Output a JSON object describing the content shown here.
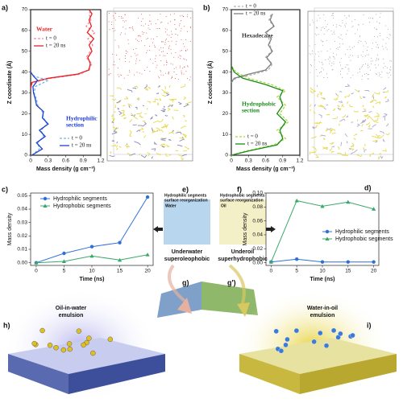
{
  "chart_data": [
    {
      "type": "profile",
      "label": "a)",
      "xlabel": "Mass density (g cm⁻³)",
      "ylabel": "Z coordinate (Å)",
      "xlim": [
        0,
        1.2
      ],
      "ylim": [
        0,
        70
      ],
      "xticks": [
        0,
        0.3,
        0.6,
        0.9,
        1.2
      ],
      "yticks": [
        0,
        10,
        20,
        30,
        40,
        50,
        60,
        70
      ],
      "groups": [
        {
          "title": [
            "Water"
          ],
          "title_color": "#e8202a",
          "series": [
            {
              "name": "t = 0",
              "color": "#f28b8b",
              "dash": true,
              "x": [
                0,
                0.03,
                0.35,
                0.85,
                0.98,
                1.05,
                0.95,
                1.02,
                1.06,
                0.98,
                1.1,
                0.95,
                1.03,
                1.0,
                1.04
              ],
              "y": [
                32,
                35,
                37,
                39,
                41,
                44,
                47,
                50,
                53,
                56,
                59,
                62,
                65,
                68,
                70
              ]
            },
            {
              "name": "t = 20 ns",
              "color": "#e8202a",
              "dash": false,
              "x": [
                0,
                0.02,
                0.3,
                0.8,
                1.0,
                1.02,
                0.98,
                1.05,
                1.0,
                1.08,
                0.97,
                1.04,
                1.0,
                1.05,
                1.0
              ],
              "y": [
                32,
                35,
                37,
                39,
                41,
                44,
                47,
                50,
                53,
                56,
                59,
                62,
                65,
                68,
                70
              ]
            }
          ]
        },
        {
          "title": [
            "Hydrophilic",
            "section"
          ],
          "title_color": "#1f3fd0",
          "series": [
            {
              "name": "t = 0",
              "color": "#6fb8e8",
              "dash": true,
              "x": [
                0.02,
                0.15,
                0.12,
                0.22,
                0.18,
                0.28,
                0.22,
                0.2,
                0.12,
                0.1,
                0.06,
                0.08,
                0.3,
                0.06,
                0
              ],
              "y": [
                0,
                3,
                6,
                9,
                12,
                15,
                18,
                21,
                24,
                27,
                30,
                33,
                36,
                38,
                40
              ]
            },
            {
              "name": "t = 20 ns",
              "color": "#1f3fd0",
              "dash": false,
              "x": [
                0.02,
                0.2,
                0.1,
                0.25,
                0.15,
                0.3,
                0.2,
                0.22,
                0.1,
                0.08,
                0.05,
                0.04,
                0.12,
                0.05,
                0
              ],
              "y": [
                0,
                3,
                6,
                9,
                12,
                15,
                18,
                21,
                24,
                27,
                30,
                33,
                36,
                38,
                40
              ]
            }
          ]
        }
      ]
    },
    {
      "type": "profile",
      "label": "b)",
      "xlabel": "Mass density (g cm⁻³)",
      "ylabel": "Z coordinate (Å)",
      "xlim": [
        0,
        1.2
      ],
      "ylim": [
        0,
        70
      ],
      "xticks": [
        0,
        0.3,
        0.6,
        0.9,
        1.2
      ],
      "yticks": [
        0,
        10,
        20,
        30,
        40,
        50,
        60,
        70
      ],
      "groups": [
        {
          "title": [
            "Hexadecane"
          ],
          "title_color": "#333333",
          "series": [
            {
              "name": "t = 0",
              "color": "#b0b0b0",
              "dash": true,
              "x": [
                0,
                0.08,
                0.4,
                0.65,
                0.72,
                0.6,
                0.7,
                0.68,
                0.66,
                0.62,
                0.74,
                0.66,
                0.7
              ],
              "y": [
                35,
                37,
                39,
                41,
                44,
                47,
                50,
                53,
                56,
                59,
                62,
                65,
                68
              ]
            },
            {
              "name": "t = 20 ns",
              "color": "#808080",
              "dash": false,
              "x": [
                0,
                0.05,
                0.3,
                0.6,
                0.7,
                0.62,
                0.72,
                0.65,
                0.7,
                0.6,
                0.75,
                0.68,
                0.72
              ],
              "y": [
                35,
                37,
                39,
                41,
                44,
                47,
                50,
                53,
                56,
                59,
                62,
                65,
                68
              ]
            }
          ]
        },
        {
          "title": [
            "Hydrophobic",
            "section"
          ],
          "title_color": "#1a8a1a",
          "series": [
            {
              "name": "t = 0",
              "color": "#a8d83a",
              "dash": true,
              "x": [
                0,
                0.25,
                0.75,
                0.95,
                0.8,
                1.0,
                0.85,
                0.95,
                0.8,
                0.95,
                0.7,
                0.3,
                0.08,
                0
              ],
              "y": [
                0,
                2,
                5,
                8,
                12,
                16,
                20,
                24,
                28,
                31,
                34,
                37,
                40,
                43
              ]
            },
            {
              "name": "t = 20 ns",
              "color": "#1a8a1a",
              "dash": false,
              "x": [
                0,
                0.3,
                0.8,
                0.9,
                0.85,
                0.95,
                0.8,
                0.9,
                0.85,
                0.9,
                0.6,
                0.2,
                0.05,
                0
              ],
              "y": [
                0,
                2,
                5,
                8,
                12,
                16,
                20,
                24,
                28,
                31,
                34,
                37,
                40,
                43
              ]
            }
          ]
        }
      ]
    },
    {
      "type": "line",
      "label": "c)",
      "xlabel": "Time (ns)",
      "ylabel": "Mass density",
      "xlim": [
        -1,
        21
      ],
      "ylim": [
        -0.002,
        0.052
      ],
      "xticks": [
        0,
        5,
        10,
        15,
        20
      ],
      "yticks": [
        {
          "value": 0,
          "label": "0.00"
        },
        {
          "value": 0.01,
          "label": "0.01"
        },
        {
          "value": 0.02,
          "label": "0.02"
        },
        {
          "value": 0.03,
          "label": "0.03"
        },
        {
          "value": 0.04,
          "label": "0.04"
        },
        {
          "value": 0.05,
          "label": "0.05"
        }
      ],
      "x": [
        0,
        5,
        10,
        15,
        20
      ],
      "series": [
        {
          "name": "Hydrophilic segments",
          "color": "#2f6fd6",
          "marker": "circle",
          "values": [
            0.0,
            0.007,
            0.012,
            0.015,
            0.049
          ]
        },
        {
          "name": "Hydrophobic segments",
          "color": "#3aa86a",
          "marker": "triangle",
          "values": [
            0.0,
            0.001,
            0.005,
            0.002,
            0.006
          ]
        }
      ]
    },
    {
      "type": "line",
      "label": "d)",
      "xlabel": "Time (ns)",
      "ylabel": "Mass density",
      "xlim": [
        -1,
        21
      ],
      "ylim": [
        -0.004,
        0.1
      ],
      "xticks": [
        0,
        5,
        10,
        15,
        20
      ],
      "yticks": [
        {
          "value": 0,
          "label": "0.00"
        },
        {
          "value": 0.02,
          "label": "0.02"
        },
        {
          "value": 0.04,
          "label": "0.04"
        },
        {
          "value": 0.06,
          "label": "0.06"
        },
        {
          "value": 0.08,
          "label": "0.08"
        },
        {
          "value": 0.1,
          "label": "0.10"
        }
      ],
      "x": [
        0,
        5,
        10,
        15,
        20
      ],
      "series": [
        {
          "name": "Hydrophilic segments",
          "color": "#2f6fd6",
          "marker": "circle",
          "values": [
            0.001,
            0.005,
            0.001,
            0.001,
            0.001
          ]
        },
        {
          "name": "Hydrophobic segments",
          "color": "#3aa86a",
          "marker": "triangle",
          "values": [
            0.001,
            0.089,
            0.081,
            0.087,
            0.077
          ]
        }
      ]
    }
  ],
  "schematics": {
    "e": {
      "label": "e)",
      "title": [
        "Hydrophilic segments",
        "surface reorganization"
      ],
      "medium": "Water",
      "caption": [
        "Underwater",
        "superoleophobic"
      ]
    },
    "f": {
      "label": "f)",
      "title": [
        "Hydrophobic segments",
        "surface reorganization"
      ],
      "medium": "Oil",
      "caption": [
        "Underoil",
        "superhydrophobic"
      ]
    },
    "g": {
      "label": "g)"
    },
    "g2": {
      "label": "g')"
    },
    "h": {
      "label": "h)",
      "caption": [
        "Oil-in-water",
        "emulsion"
      ]
    },
    "i": {
      "label": "i)",
      "caption": [
        "Water-in-oil",
        "emulsion"
      ]
    }
  }
}
